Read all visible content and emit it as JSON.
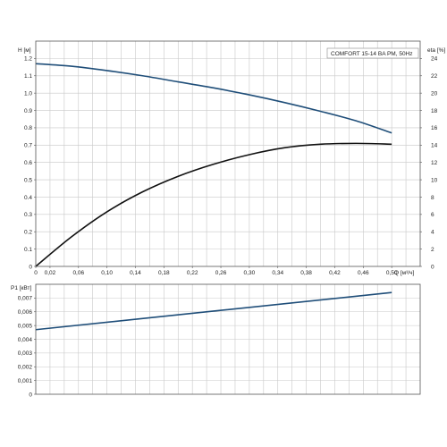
{
  "chart_data": [
    {
      "type": "line",
      "title": "COMFORT 15-14 BA PM, 50Hz",
      "xlabel": "Q [м³/ч]",
      "ylabel": "H [м]",
      "y2label": "eta [%]",
      "xlim": [
        0,
        0.54
      ],
      "ylim": [
        0,
        1.3
      ],
      "y2lim": [
        0,
        26
      ],
      "grid": true,
      "xticks": [
        "0",
        "0,02",
        "0,06",
        "0,10",
        "0,14",
        "0,18",
        "0,22",
        "0,26",
        "0,30",
        "0,34",
        "0,38",
        "0,42",
        "0,46",
        "0,50"
      ],
      "yticks": [
        "0",
        "0.1",
        "0.2",
        "0.3",
        "0.4",
        "0.5",
        "0.6",
        "0.7",
        "0.8",
        "0.9",
        "1.0",
        "1.1",
        "1.2"
      ],
      "y2ticks": [
        "0",
        "2",
        "4",
        "6",
        "8",
        "10",
        "12",
        "14",
        "16",
        "18",
        "20",
        "22",
        "24"
      ],
      "series": [
        {
          "axis": "left",
          "color": "#1f4e79",
          "x": [
            0,
            0.05,
            0.1,
            0.15,
            0.2,
            0.25,
            0.3,
            0.35,
            0.4,
            0.45,
            0.5
          ],
          "y": [
            1.17,
            1.155,
            1.13,
            1.1,
            1.065,
            1.03,
            0.99,
            0.945,
            0.895,
            0.84,
            0.77
          ]
        },
        {
          "axis": "left",
          "color": "#111111",
          "x": [
            0,
            0.05,
            0.1,
            0.15,
            0.2,
            0.25,
            0.3,
            0.35,
            0.4,
            0.45,
            0.5
          ],
          "y": [
            0.0,
            0.17,
            0.315,
            0.43,
            0.52,
            0.59,
            0.645,
            0.685,
            0.705,
            0.71,
            0.705
          ]
        }
      ]
    },
    {
      "type": "line",
      "xlabel": "",
      "ylabel": "P1 [кВт]",
      "xlim": [
        0,
        0.54
      ],
      "ylim": [
        0,
        0.008
      ],
      "grid": true,
      "yticks": [
        "0",
        "0,001",
        "0,002",
        "0,003",
        "0,004",
        "0,005",
        "0,006",
        "0,007"
      ],
      "series": [
        {
          "color": "#1f4e79",
          "x": [
            0,
            0.5
          ],
          "y": [
            0.0047,
            0.0074
          ]
        }
      ]
    }
  ]
}
